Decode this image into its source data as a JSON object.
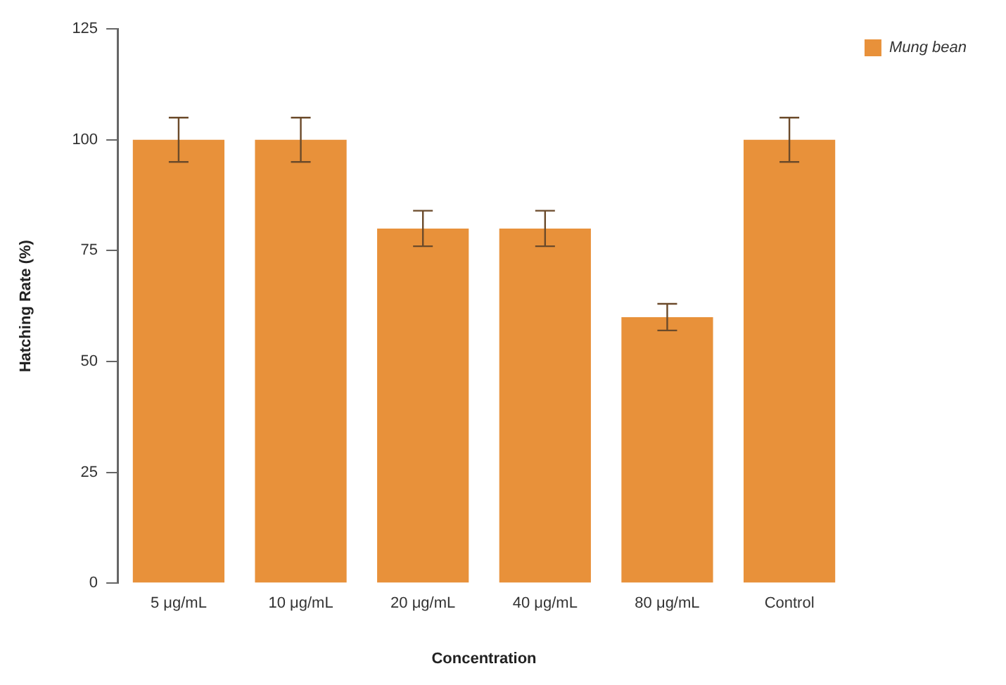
{
  "chart_data": {
    "type": "bar",
    "xlabel": "Concentration",
    "ylabel": "Hatching Rate (%)",
    "categories": [
      "5 μg/mL",
      "10 μg/mL",
      "20 μg/mL",
      "40 μg/mL",
      "80 μg/mL",
      "Control"
    ],
    "series": [
      {
        "name": "Mung bean",
        "color": "#e8913a",
        "values": [
          100,
          100,
          80,
          80,
          60,
          100
        ],
        "errors": [
          5,
          5,
          4,
          4,
          3,
          5
        ]
      }
    ],
    "ylim": [
      0,
      125
    ],
    "yticks": [
      0,
      25,
      50,
      75,
      100,
      125
    ],
    "grid": false,
    "legend": "top right"
  }
}
